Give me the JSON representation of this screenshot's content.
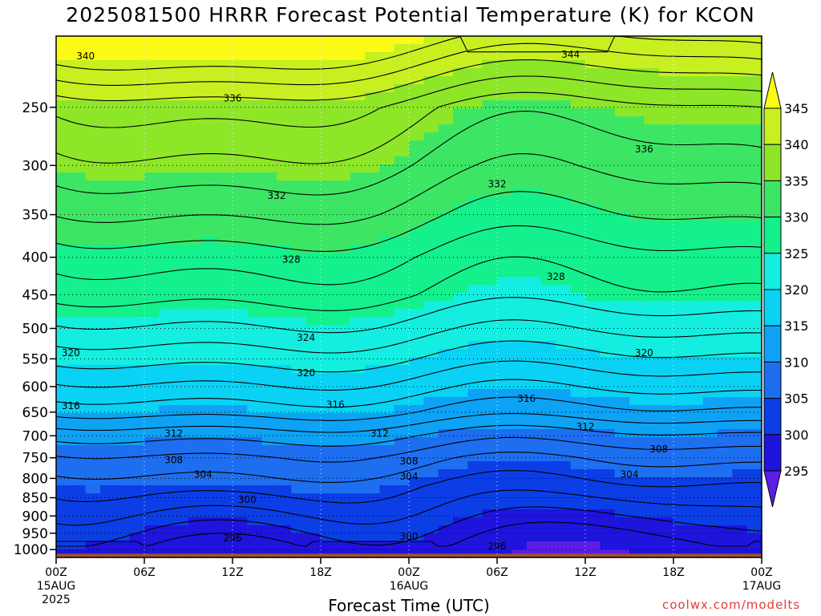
{
  "title": "2025081500 HRRR Forecast Potential Temperature (K) for KCON",
  "xlabel": "Forecast Time (UTC)",
  "credit": "coolwx.com/modelts",
  "chart_data": {
    "type": "heatmap",
    "title": "2025081500 HRRR Forecast Potential Temperature (K) for KCON",
    "xlabel": "Forecast Time (UTC)",
    "ylabel": "",
    "y_scale": "log-pressure",
    "y_ticks": [
      250,
      300,
      350,
      400,
      450,
      500,
      550,
      600,
      650,
      700,
      750,
      800,
      850,
      900,
      950,
      1000
    ],
    "y_range_hpa": [
      200,
      1025
    ],
    "x_range_hours": [
      0,
      48
    ],
    "x_ticks": [
      {
        "hour": 0,
        "label": "00Z",
        "date": "15AUG",
        "year": "2025"
      },
      {
        "hour": 6,
        "label": "06Z",
        "date": "",
        "year": ""
      },
      {
        "hour": 12,
        "label": "12Z",
        "date": "",
        "year": ""
      },
      {
        "hour": 18,
        "label": "18Z",
        "date": "",
        "year": ""
      },
      {
        "hour": 24,
        "label": "00Z",
        "date": "16AUG",
        "year": ""
      },
      {
        "hour": 30,
        "label": "06Z",
        "date": "",
        "year": ""
      },
      {
        "hour": 36,
        "label": "12Z",
        "date": "",
        "year": ""
      },
      {
        "hour": 42,
        "label": "18Z",
        "date": "",
        "year": ""
      },
      {
        "hour": 48,
        "label": "00Z",
        "date": "17AUG",
        "year": ""
      }
    ],
    "grid": true,
    "colorbar": {
      "labels": [
        295,
        300,
        305,
        310,
        315,
        320,
        325,
        330,
        335,
        340,
        345
      ],
      "bands": [
        {
          "min": 290,
          "max": 295,
          "color": "#5a1ee6"
        },
        {
          "min": 295,
          "max": 300,
          "color": "#1e14dc"
        },
        {
          "min": 300,
          "max": 305,
          "color": "#0c3ee6"
        },
        {
          "min": 305,
          "max": 310,
          "color": "#1e6ef0"
        },
        {
          "min": 310,
          "max": 315,
          "color": "#0ea2f5"
        },
        {
          "min": 315,
          "max": 320,
          "color": "#0ad2f5"
        },
        {
          "min": 320,
          "max": 325,
          "color": "#14eee0"
        },
        {
          "min": 325,
          "max": 330,
          "color": "#14f08c"
        },
        {
          "min": 330,
          "max": 335,
          "color": "#3ce664"
        },
        {
          "min": 335,
          "max": 340,
          "color": "#8ee628"
        },
        {
          "min": 340,
          "max": 345,
          "color": "#c8f020"
        },
        {
          "min": 345,
          "max": 350,
          "color": "#fafa14"
        }
      ]
    },
    "profile": [
      {
        "p": 1000,
        "theta": 297
      },
      {
        "p": 950,
        "theta": 299
      },
      {
        "p": 900,
        "theta": 301
      },
      {
        "p": 850,
        "theta": 303
      },
      {
        "p": 800,
        "theta": 305
      },
      {
        "p": 750,
        "theta": 307
      },
      {
        "p": 700,
        "theta": 310
      },
      {
        "p": 650,
        "theta": 314
      },
      {
        "p": 600,
        "theta": 317
      },
      {
        "p": 550,
        "theta": 320
      },
      {
        "p": 500,
        "theta": 323
      },
      {
        "p": 450,
        "theta": 326
      },
      {
        "p": 400,
        "theta": 328
      },
      {
        "p": 350,
        "theta": 331
      },
      {
        "p": 300,
        "theta": 334
      },
      {
        "p": 250,
        "theta": 337
      },
      {
        "p": 200,
        "theta": 346
      }
    ],
    "contour_levels": [
      296,
      298,
      300,
      302,
      304,
      306,
      308,
      310,
      312,
      314,
      316,
      318,
      320,
      322,
      324,
      326,
      328,
      330,
      332,
      334,
      336,
      338,
      340,
      342,
      344
    ],
    "contour_labels": [
      {
        "hour": 2,
        "p": 213,
        "value": "340"
      },
      {
        "hour": 35,
        "p": 212,
        "value": "344"
      },
      {
        "hour": 12,
        "p": 243,
        "value": "336"
      },
      {
        "hour": 40,
        "p": 285,
        "value": "336"
      },
      {
        "hour": 15,
        "p": 330,
        "value": "332"
      },
      {
        "hour": 30,
        "p": 318,
        "value": "332"
      },
      {
        "hour": 16,
        "p": 403,
        "value": "328"
      },
      {
        "hour": 34,
        "p": 425,
        "value": "328"
      },
      {
        "hour": 17,
        "p": 515,
        "value": "324"
      },
      {
        "hour": 1,
        "p": 540,
        "value": "320"
      },
      {
        "hour": 17,
        "p": 575,
        "value": "320"
      },
      {
        "hour": 40,
        "p": 540,
        "value": "320"
      },
      {
        "hour": 1,
        "p": 637,
        "value": "316"
      },
      {
        "hour": 19,
        "p": 635,
        "value": "316"
      },
      {
        "hour": 32,
        "p": 623,
        "value": "316"
      },
      {
        "hour": 8,
        "p": 695,
        "value": "312"
      },
      {
        "hour": 22,
        "p": 695,
        "value": "312"
      },
      {
        "hour": 36,
        "p": 680,
        "value": "312"
      },
      {
        "hour": 8,
        "p": 755,
        "value": "308"
      },
      {
        "hour": 24,
        "p": 758,
        "value": "308"
      },
      {
        "hour": 41,
        "p": 730,
        "value": "308"
      },
      {
        "hour": 10,
        "p": 790,
        "value": "304"
      },
      {
        "hour": 24,
        "p": 795,
        "value": "304"
      },
      {
        "hour": 39,
        "p": 790,
        "value": "304"
      },
      {
        "hour": 13,
        "p": 855,
        "value": "300"
      },
      {
        "hour": 24,
        "p": 960,
        "value": "300"
      },
      {
        "hour": 12,
        "p": 965,
        "value": "296"
      },
      {
        "hour": 30,
        "p": 990,
        "value": "296"
      }
    ]
  }
}
